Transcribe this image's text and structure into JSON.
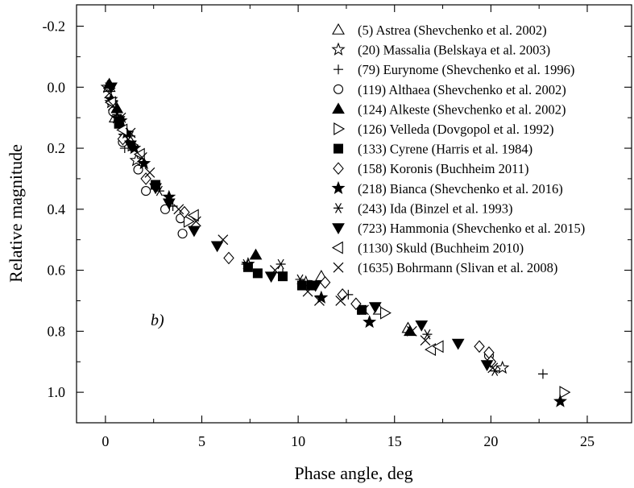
{
  "chart_data": {
    "type": "scatter",
    "xlabel": "Phase angle, deg",
    "ylabel": "Relative magnitude",
    "panel_label": "b)",
    "xlim": [
      -1.5,
      27.3
    ],
    "ylim": [
      -0.27,
      1.1
    ],
    "y_inverted": true,
    "grid": false,
    "legend_placement": "top-right",
    "x_ticks": [
      0,
      5,
      10,
      15,
      20,
      25
    ],
    "x_tick_labels": [
      "0",
      "5",
      "10",
      "15",
      "20",
      "25"
    ],
    "y_ticks": [
      -0.2,
      0.0,
      0.2,
      0.4,
      0.6,
      0.8,
      1.0
    ],
    "y_tick_labels": [
      "-0.2",
      "0.0",
      "0.2",
      "0.4",
      "0.6",
      "0.8",
      "1.0"
    ],
    "series": [
      {
        "name": "(5) Astrea (Shevchenko et al. 2002)",
        "marker": "triangle-up-open",
        "points": [
          [
            0.2,
            0.0
          ],
          [
            0.5,
            0.1
          ],
          [
            11.2,
            0.62
          ],
          [
            14.2,
            0.73
          ],
          [
            15.7,
            0.79
          ]
        ]
      },
      {
        "name": "(20) Massalia (Belskaya et al. 2003)",
        "marker": "star-open",
        "points": [
          [
            0.1,
            0.0
          ],
          [
            0.3,
            0.05
          ],
          [
            0.6,
            0.1
          ],
          [
            1.0,
            0.16
          ],
          [
            1.6,
            0.24
          ],
          [
            7.4,
            0.58
          ],
          [
            10.4,
            0.64
          ],
          [
            20.6,
            0.92
          ]
        ]
      },
      {
        "name": "(79) Eurynome (Shevchenko et al. 1996)",
        "marker": "plus",
        "points": [
          [
            1.0,
            0.2
          ],
          [
            3.5,
            0.39
          ],
          [
            9.2,
            0.61
          ],
          [
            12.6,
            0.68
          ],
          [
            22.7,
            0.94
          ]
        ]
      },
      {
        "name": "(119) Althaea (Shevchenko et al. 2002)",
        "marker": "circle-open",
        "points": [
          [
            0.4,
            0.08
          ],
          [
            0.9,
            0.18
          ],
          [
            1.7,
            0.27
          ],
          [
            2.1,
            0.34
          ],
          [
            3.1,
            0.4
          ],
          [
            3.9,
            0.43
          ],
          [
            4.0,
            0.48
          ],
          [
            19.9,
            0.88
          ]
        ]
      },
      {
        "name": "(124) Alkeste (Shevchenko et al. 2002)",
        "marker": "triangle-up-filled",
        "points": [
          [
            0.2,
            -0.01
          ],
          [
            0.6,
            0.07
          ],
          [
            7.8,
            0.55
          ],
          [
            15.8,
            0.8
          ]
        ]
      },
      {
        "name": "(126) Velleda (Dovgopol et al. 1992)",
        "marker": "triangle-right-open",
        "points": [
          [
            1.4,
            0.19
          ],
          [
            4.3,
            0.44
          ],
          [
            14.5,
            0.74
          ],
          [
            23.8,
            1.0
          ]
        ]
      },
      {
        "name": "(133) Cyrene (Harris et al. 1984)",
        "marker": "square-filled",
        "points": [
          [
            0.7,
            0.12
          ],
          [
            2.6,
            0.32
          ],
          [
            7.4,
            0.59
          ],
          [
            7.9,
            0.61
          ],
          [
            9.2,
            0.62
          ],
          [
            10.2,
            0.65
          ],
          [
            10.7,
            0.65
          ],
          [
            13.3,
            0.73
          ]
        ]
      },
      {
        "name": "(158) Koronis (Buchheim 2011)",
        "marker": "diamond-open",
        "points": [
          [
            0.9,
            0.17
          ],
          [
            2.1,
            0.3
          ],
          [
            4.1,
            0.41
          ],
          [
            6.4,
            0.56
          ],
          [
            11.4,
            0.64
          ],
          [
            12.3,
            0.68
          ],
          [
            13.0,
            0.71
          ],
          [
            19.4,
            0.85
          ],
          [
            19.9,
            0.87
          ],
          [
            20.0,
            0.9
          ]
        ]
      },
      {
        "name": "(218) Bianca (Shevchenko et al. 2016)",
        "marker": "star-filled",
        "points": [
          [
            0.3,
            0.04
          ],
          [
            0.8,
            0.11
          ],
          [
            1.1,
            0.15
          ],
          [
            1.5,
            0.2
          ],
          [
            2.0,
            0.25
          ],
          [
            3.3,
            0.36
          ],
          [
            11.2,
            0.69
          ],
          [
            13.7,
            0.77
          ],
          [
            23.6,
            1.03
          ]
        ]
      },
      {
        "name": "(243) Ida (Binzel et al. 1993)",
        "marker": "asterisk",
        "points": [
          [
            0.6,
            0.09
          ],
          [
            1.3,
            0.16
          ],
          [
            2.8,
            0.34
          ],
          [
            7.3,
            0.58
          ],
          [
            9.1,
            0.58
          ],
          [
            10.1,
            0.63
          ],
          [
            16.7,
            0.81
          ],
          [
            20.2,
            0.93
          ]
        ]
      },
      {
        "name": "(723) Hammonia (Shevchenko et al. 2015)",
        "marker": "triangle-down-filled",
        "points": [
          [
            0.3,
            0.0
          ],
          [
            0.7,
            0.11
          ],
          [
            1.3,
            0.19
          ],
          [
            2.6,
            0.33
          ],
          [
            3.3,
            0.38
          ],
          [
            4.6,
            0.47
          ],
          [
            5.8,
            0.52
          ],
          [
            8.6,
            0.62
          ],
          [
            10.9,
            0.65
          ],
          [
            14.0,
            0.72
          ],
          [
            16.4,
            0.78
          ],
          [
            18.3,
            0.84
          ],
          [
            19.8,
            0.91
          ]
        ]
      },
      {
        "name": "(1130) Skuld (Buchheim 2010)",
        "marker": "triangle-left-open",
        "points": [
          [
            0.3,
            0.05
          ],
          [
            0.9,
            0.14
          ],
          [
            1.8,
            0.22
          ],
          [
            4.6,
            0.42
          ],
          [
            16.9,
            0.86
          ],
          [
            17.3,
            0.85
          ]
        ]
      },
      {
        "name": "(1635) Bohrmann (Slivan et al. 2008)",
        "marker": "x-cross",
        "points": [
          [
            0.2,
            0.02
          ],
          [
            0.4,
            0.06
          ],
          [
            0.8,
            0.1
          ],
          [
            1.3,
            0.15
          ],
          [
            1.9,
            0.23
          ],
          [
            2.3,
            0.28
          ],
          [
            3.8,
            0.4
          ],
          [
            4.7,
            0.44
          ],
          [
            6.1,
            0.5
          ],
          [
            8.8,
            0.6
          ],
          [
            10.5,
            0.67
          ],
          [
            11.1,
            0.7
          ],
          [
            12.2,
            0.7
          ],
          [
            13.4,
            0.73
          ],
          [
            15.9,
            0.8
          ],
          [
            16.6,
            0.83
          ],
          [
            20.1,
            0.92
          ]
        ]
      }
    ]
  }
}
